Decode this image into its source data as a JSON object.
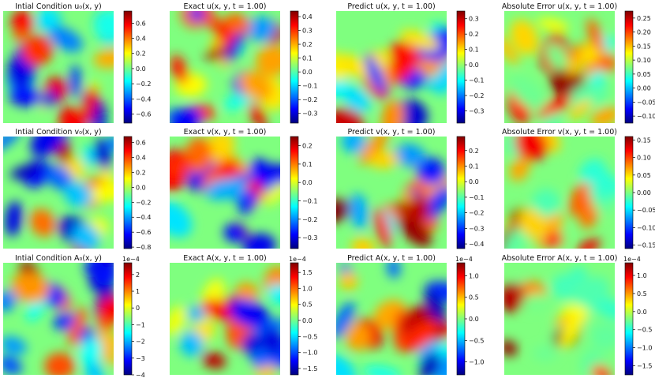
{
  "figure": {
    "colormap": "jet",
    "colormap_stops": [
      "#00007f",
      "#0000ff",
      "#007fff",
      "#00ffff",
      "#7fff7f",
      "#ffff00",
      "#ff7f00",
      "#ff0000",
      "#7f0000"
    ]
  },
  "chart_data": [
    {
      "type": "heatmap",
      "title": "Intial Condition u₀(x, y)",
      "colorbar": {
        "ticks": [
          "0.6",
          "0.4",
          "0.2",
          "0.0",
          "−0.2",
          "−0.4",
          "−0.6"
        ],
        "range": [
          -0.72,
          0.76
        ],
        "exponent": ""
      }
    },
    {
      "type": "heatmap",
      "title": "Exact u(x, y, t = 1.00)",
      "colorbar": {
        "ticks": [
          "0.4",
          "0.3",
          "0.2",
          "0.1",
          "0.0",
          "−0.1",
          "−0.2",
          "−0.3"
        ],
        "range": [
          -0.37,
          0.44
        ],
        "exponent": ""
      }
    },
    {
      "type": "heatmap",
      "title": "Predict u(x, y, t = 1.00)",
      "colorbar": {
        "ticks": [
          "0.3",
          "0.2",
          "0.1",
          "0.0",
          "−0.1",
          "−0.2",
          "−0.3"
        ],
        "range": [
          -0.38,
          0.35
        ],
        "exponent": ""
      }
    },
    {
      "type": "heatmap",
      "title": "Absolute Error u(x, y, t = 1.00)",
      "colorbar": {
        "ticks": [
          "0.25",
          "0.20",
          "0.15",
          "0.10",
          "0.05",
          "0.00",
          "−0.05",
          "−0.10"
        ],
        "range": [
          -0.125,
          0.275
        ],
        "exponent": ""
      }
    },
    {
      "type": "heatmap",
      "title": "Intial Condition v₀(x, y)",
      "colorbar": {
        "ticks": [
          "0.6",
          "0.4",
          "0.2",
          "0.0",
          "−0.2",
          "−0.4",
          "−0.6",
          "−0.8"
        ],
        "range": [
          -0.82,
          0.68
        ],
        "exponent": ""
      }
    },
    {
      "type": "heatmap",
      "title": "Exact v(x, y, t = 1.00)",
      "colorbar": {
        "ticks": [
          "0.2",
          "0.1",
          "0.0",
          "−0.1",
          "−0.2",
          "−0.3"
        ],
        "range": [
          -0.36,
          0.25
        ],
        "exponent": ""
      }
    },
    {
      "type": "heatmap",
      "title": "Predict v(x, y, t = 1.00)",
      "colorbar": {
        "ticks": [
          "0.2",
          "0.1",
          "0.0",
          "−0.1",
          "−0.2",
          "−0.3",
          "−0.4"
        ],
        "range": [
          -0.43,
          0.29
        ],
        "exponent": ""
      }
    },
    {
      "type": "heatmap",
      "title": "Absolute Error v(x, y, t = 1.00)",
      "colorbar": {
        "ticks": [
          "0.15",
          "0.10",
          "0.05",
          "0.00",
          "−0.05",
          "−0.10",
          "−0.15"
        ],
        "range": [
          -0.16,
          0.16
        ],
        "exponent": ""
      }
    },
    {
      "type": "heatmap",
      "title": "Intial Condition A₀(x, y)",
      "colorbar": {
        "ticks": [
          "2",
          "1",
          "0",
          "−1",
          "−2",
          "−3",
          "−4"
        ],
        "range": [
          -4.0,
          2.7
        ],
        "exponent": "1e−4"
      }
    },
    {
      "type": "heatmap",
      "title": "Exact A(x, y, t = 1.00)",
      "colorbar": {
        "ticks": [
          "1.5",
          "1.0",
          "0.5",
          "0.0",
          "−0.5",
          "−1.0",
          "−1.5"
        ],
        "range": [
          -1.7,
          1.8
        ],
        "exponent": "1e−4"
      }
    },
    {
      "type": "heatmap",
      "title": "Predict A(x, y, t = 1.00)",
      "colorbar": {
        "ticks": [
          "1.0",
          "0.5",
          "0.0",
          "−0.5",
          "−1.0"
        ],
        "range": [
          -1.3,
          1.3
        ],
        "exponent": "1e−4"
      }
    },
    {
      "type": "heatmap",
      "title": "Absolute Error A(x, y, t = 1.00)",
      "colorbar": {
        "ticks": [
          "1.0",
          "0.5",
          "0.0",
          "−0.5",
          "−1.0",
          "−1.5"
        ],
        "range": [
          -1.75,
          1.35
        ],
        "exponent": "1e−4"
      }
    }
  ]
}
